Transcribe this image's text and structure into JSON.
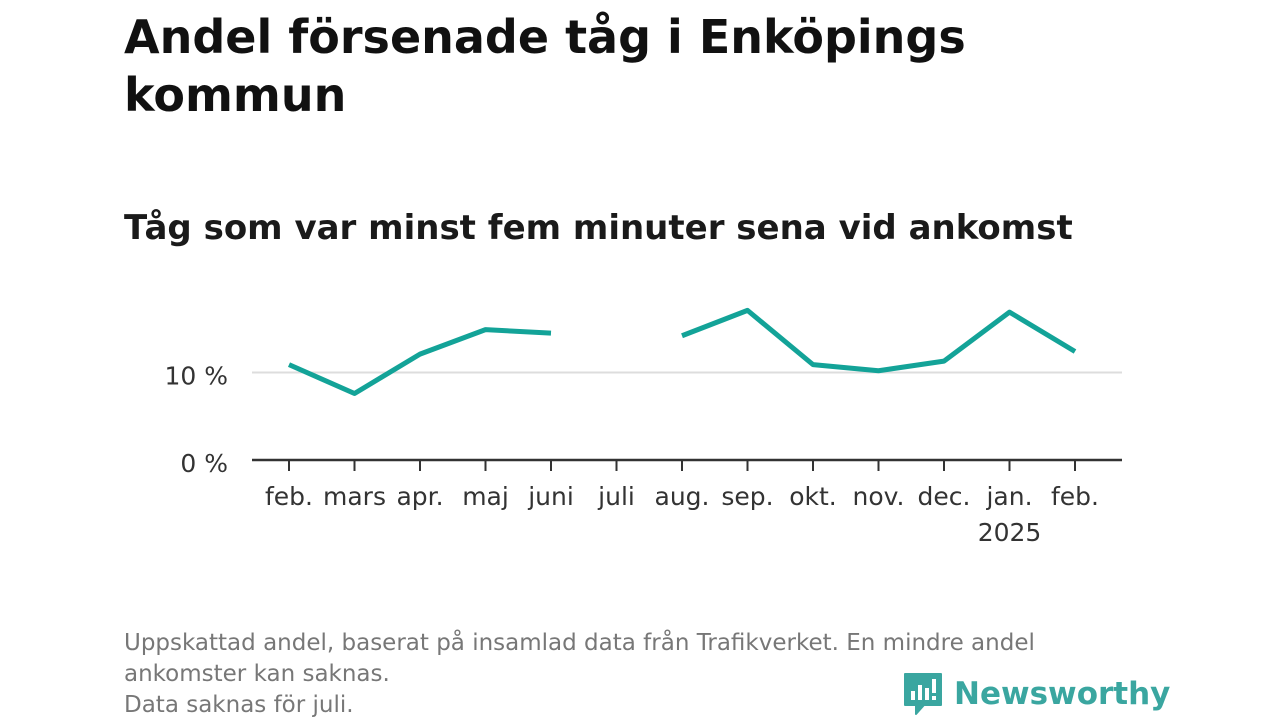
{
  "title": "Andel försenade tåg i Enköpings kommun",
  "subtitle": "Tåg som var minst fem minuter sena vid ankomst",
  "footnote": {
    "line1": "Uppskattad andel, baserat på insamlad data från Trafikverket. En mindre andel",
    "line2": "ankomster kan saknas.",
    "line3": "Data saknas för juli."
  },
  "brand": {
    "name": "Newsworthy",
    "icon": "newsworthy-logo-icon",
    "color": "#3aa6a0"
  },
  "colors": {
    "line": "#13a398",
    "grid": "#dddddd",
    "axis": "#333333",
    "text": "#333333"
  },
  "chart_data": {
    "type": "line",
    "title": "Andel försenade tåg i Enköpings kommun",
    "subtitle": "Tåg som var minst fem minuter sena vid ankomst",
    "categories": [
      "feb.",
      "mars",
      "apr.",
      "maj",
      "juni",
      "juli",
      "aug.",
      "sep.",
      "okt.",
      "nov.",
      "dec.",
      "jan.",
      "feb."
    ],
    "category_sublabels": [
      "",
      "",
      "",
      "",
      "",
      "",
      "",
      "",
      "",
      "",
      "",
      "2025",
      ""
    ],
    "series": [
      {
        "values": [
          10.9,
          7.6,
          12.1,
          14.9,
          14.5,
          null,
          14.2,
          17.1,
          10.9,
          10.2,
          11.3,
          16.9,
          12.4
        ]
      }
    ],
    "yticks": [
      0,
      10
    ],
    "ytick_labels": [
      "0 %",
      "10 %"
    ],
    "ylim": [
      0,
      20
    ],
    "xlabel": "",
    "ylabel": "",
    "grid": true,
    "legend": "none"
  }
}
